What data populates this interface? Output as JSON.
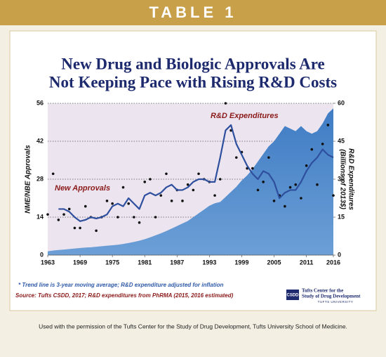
{
  "header": "TABLE 1",
  "chart_data": {
    "type": "combo",
    "title": [
      "New Drug and Biologic Approvals Are",
      "Not Keeping Pace with Rising R&D Costs"
    ],
    "ylabel": "NME/NBE Approvals",
    "y2label": [
      "R&D Expenditures",
      "(Billions of 2013$)"
    ],
    "x": [
      1963,
      1964,
      1965,
      1966,
      1967,
      1968,
      1969,
      1970,
      1971,
      1972,
      1973,
      1974,
      1975,
      1976,
      1977,
      1978,
      1979,
      1980,
      1981,
      1982,
      1983,
      1984,
      1985,
      1986,
      1987,
      1988,
      1989,
      1990,
      1991,
      1992,
      1993,
      1994,
      1995,
      1996,
      1997,
      1998,
      1999,
      2000,
      2001,
      2002,
      2003,
      2004,
      2005,
      2006,
      2007,
      2008,
      2009,
      2010,
      2011,
      2012,
      2013,
      2014,
      2015,
      2016
    ],
    "xlim": [
      1963,
      2016
    ],
    "xticks": [
      1963,
      1969,
      1975,
      1981,
      1987,
      1993,
      1999,
      2005,
      2011,
      2016
    ],
    "ylim": [
      0,
      56
    ],
    "yticks": [
      0,
      14,
      28,
      42,
      56
    ],
    "y2lim": [
      0,
      60
    ],
    "y2ticks": [
      0,
      15,
      30,
      45,
      60
    ],
    "grid": true,
    "series": [
      {
        "name": "R&D Expenditures",
        "type": "area",
        "axis": "y2",
        "color": "#4a86c8",
        "values": [
          1.5,
          1.8,
          2.0,
          2.2,
          2.4,
          2.6,
          2.8,
          3.0,
          3.1,
          3.3,
          3.5,
          3.7,
          3.9,
          4.1,
          4.4,
          4.8,
          5.2,
          5.7,
          6.3,
          7.0,
          7.8,
          8.6,
          9.5,
          10.5,
          11.5,
          12.5,
          13.5,
          15,
          16.5,
          18,
          19.5,
          20.5,
          21,
          23,
          25,
          27,
          29.5,
          31.5,
          34,
          37,
          40,
          43,
          45,
          48,
          51,
          50,
          49,
          51,
          49,
          48,
          49,
          52,
          56,
          58
        ]
      },
      {
        "name": "New Approvals",
        "type": "scatter",
        "color": "#111111",
        "values": [
          15,
          30,
          13,
          15,
          17,
          10,
          10,
          18,
          14,
          9,
          14,
          20,
          19,
          14,
          25,
          19,
          14,
          12,
          27,
          28,
          14,
          22,
          30,
          20,
          24,
          20,
          26,
          24,
          30,
          28,
          27,
          22,
          28,
          56,
          46,
          36,
          38,
          32,
          32,
          24,
          27,
          36,
          20,
          22,
          18,
          25,
          26,
          21,
          33,
          39,
          26,
          41,
          48,
          22
        ]
      },
      {
        "type": "line",
        "color": "#2e4f9e",
        "values": [
          null,
          null,
          17,
          17,
          16,
          14,
          12.5,
          13,
          14,
          13.5,
          14,
          15,
          18,
          19,
          18,
          21,
          19,
          17,
          22,
          23,
          22,
          23,
          25,
          26,
          24,
          24,
          25,
          27,
          28,
          28,
          27,
          27,
          36,
          46,
          48,
          41,
          37,
          33,
          30,
          28,
          31,
          30,
          27,
          21,
          23,
          24,
          24,
          27,
          31,
          34,
          36,
          39,
          37,
          36
        ]
      }
    ]
  },
  "footnote": "* Trend line is 3-year moving average; R&D expenditure adjusted for inflation",
  "source": "Source: Tufts CSDD, 2017; R&D expenditures from PhRMA (2015, 2016 estimated)",
  "logo": {
    "mark": "CSDD",
    "name": [
      "Tufts Center for the",
      "Study of Drug Development"
    ],
    "university": "TUFTS UNIVERSITY"
  },
  "caption": "Used with the permission of the Tufts Center for the Study of Drug Development, Tufts University School of Medicine."
}
